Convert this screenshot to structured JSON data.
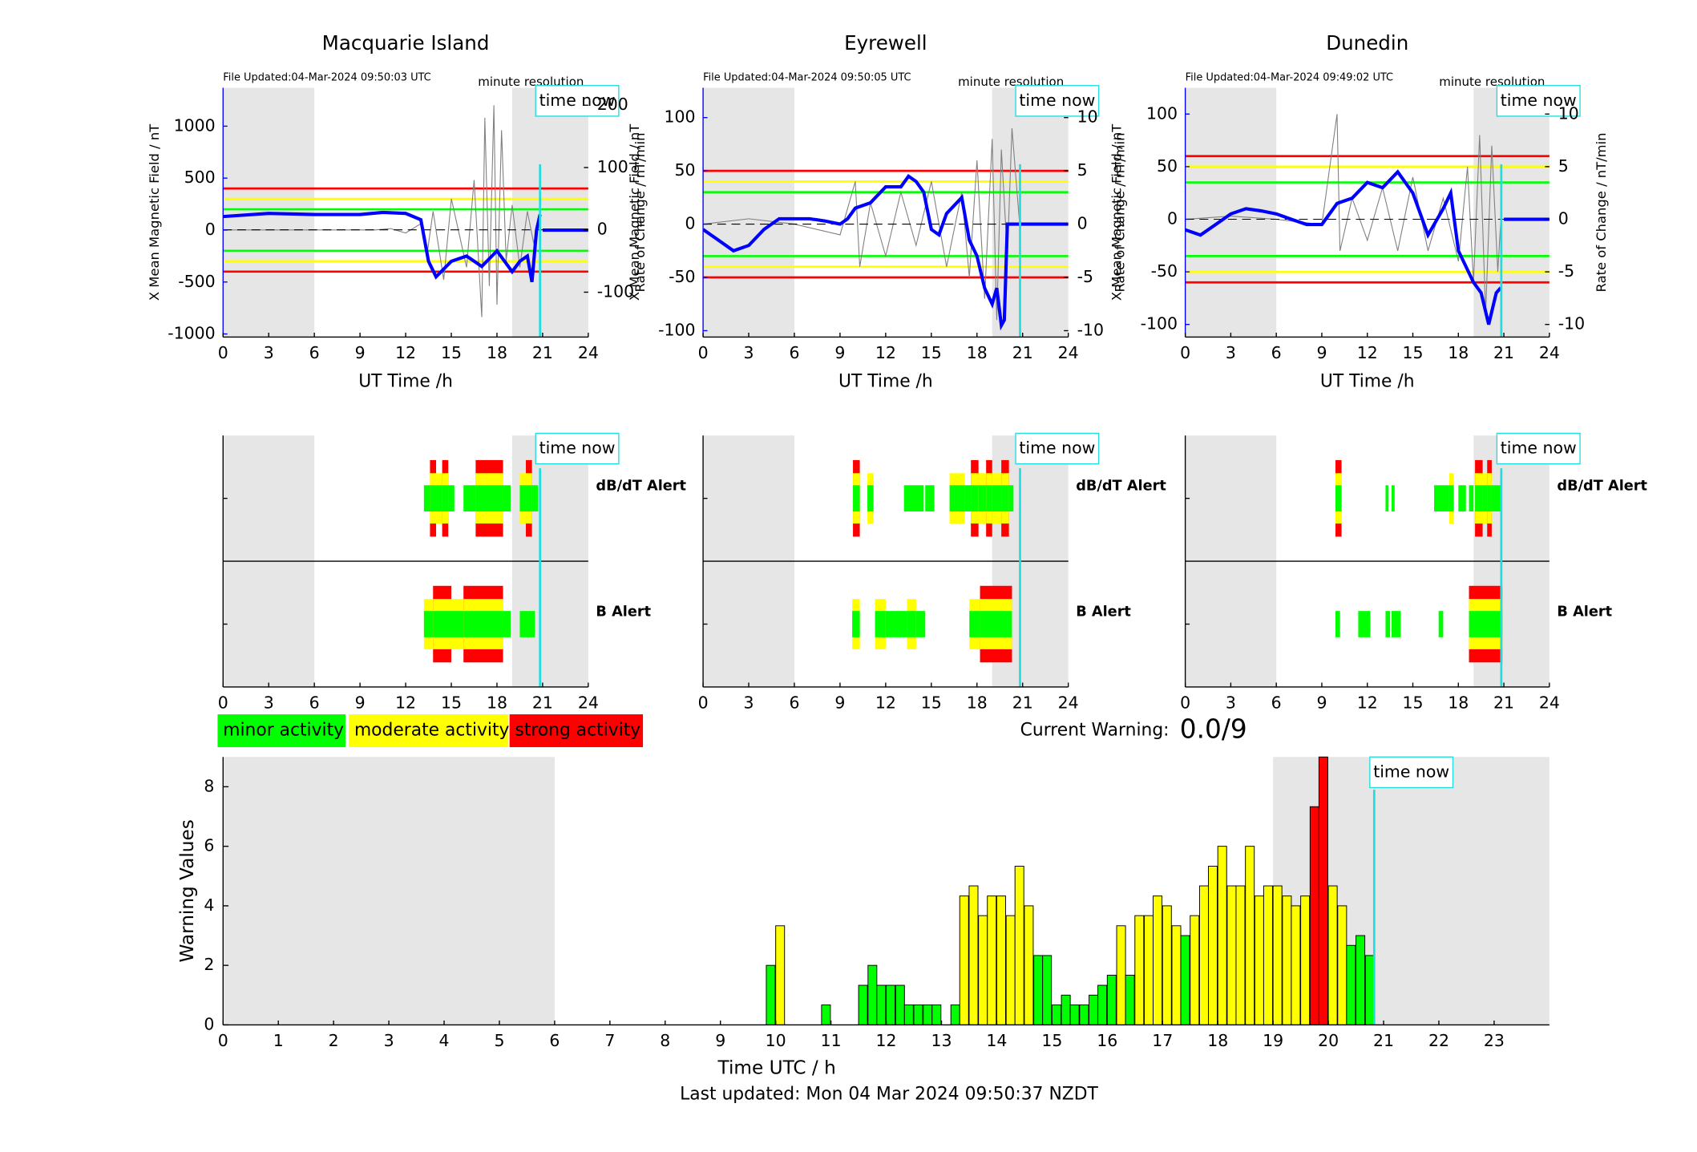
{
  "chart_data": [
    {
      "type": "line",
      "title": "Macquarie Island",
      "subtitle": "File Updated:04-Mar-2024 09:50:03 UTC",
      "note": "minute resolution",
      "time_now": 20.83,
      "time_now_label": "time now",
      "xlabel": "UT Time /h",
      "ylabel": "X Mean Magnetic Field / nT",
      "y2label": "Rate of Change / nT/min",
      "xlim": [
        0,
        24
      ],
      "xticks": [
        0,
        3,
        6,
        9,
        12,
        15,
        18,
        21,
        24
      ],
      "ylim": [
        -1030,
        1370
      ],
      "yticks": [
        -1000,
        -500,
        0,
        500,
        1000
      ],
      "y2lim": [
        -172,
        228
      ],
      "y2ticks": [
        -100,
        0,
        100,
        200
      ],
      "shade": [
        [
          0,
          6
        ],
        [
          19,
          24
        ]
      ],
      "thresholds": [
        {
          "value": 400,
          "color": "#ff0000"
        },
        {
          "value": -400,
          "color": "#ff0000"
        },
        {
          "value": 300,
          "color": "#ffff00"
        },
        {
          "value": -300,
          "color": "#ffff00"
        },
        {
          "value": 200,
          "color": "#00ff00"
        },
        {
          "value": -200,
          "color": "#00ff00"
        }
      ],
      "rate": {
        "color": "#808080",
        "axis": "y2",
        "x": [
          0,
          6,
          10,
          11,
          12,
          13,
          13.4,
          13.8,
          14.5,
          15,
          16,
          16.5,
          17,
          17.2,
          17.5,
          17.8,
          18,
          18.3,
          18.6,
          19,
          19.5,
          20,
          20.4,
          20.8
        ],
        "values": [
          0,
          0,
          0,
          2,
          -5,
          10,
          -40,
          30,
          -80,
          50,
          -60,
          80,
          -140,
          180,
          -90,
          200,
          -120,
          160,
          -50,
          40,
          -60,
          30,
          -20,
          10
        ]
      },
      "field": {
        "color": "#0000ff",
        "x": [
          0,
          3,
          6,
          9,
          10.5,
          12,
          13,
          13.5,
          14,
          15,
          16,
          17,
          18,
          19,
          19.5,
          20,
          20.3,
          20.6,
          20.83,
          20.9,
          21,
          24
        ],
        "values": [
          130,
          160,
          150,
          150,
          170,
          160,
          100,
          -300,
          -450,
          -300,
          -250,
          -350,
          -200,
          -400,
          -300,
          -250,
          -500,
          0,
          150,
          null,
          0,
          0
        ]
      }
    },
    {
      "type": "line",
      "title": "Eyrewell",
      "subtitle": "File Updated:04-Mar-2024 09:50:05 UTC",
      "note": "minute resolution",
      "time_now": 20.83,
      "time_now_label": "time now",
      "xlabel": "UT Time /h",
      "ylabel": "X Mean Magnetic Field / nT",
      "y2label": "Rate of Change / nT/min",
      "xlim": [
        0,
        24
      ],
      "xticks": [
        0,
        3,
        6,
        9,
        12,
        15,
        18,
        21,
        24
      ],
      "ylim": [
        -106,
        128
      ],
      "yticks": [
        -100,
        -50,
        0,
        50,
        100
      ],
      "y2lim": [
        -10.6,
        12.8
      ],
      "y2ticks": [
        -10,
        -5,
        0,
        5,
        10
      ],
      "shade": [
        [
          0,
          6
        ],
        [
          19,
          24
        ]
      ],
      "thresholds": [
        {
          "value": 50,
          "color": "#ff0000"
        },
        {
          "value": -50,
          "color": "#ff0000"
        },
        {
          "value": 40,
          "color": "#ffff00"
        },
        {
          "value": -40,
          "color": "#ffff00"
        },
        {
          "value": 30,
          "color": "#00ff00"
        },
        {
          "value": -30,
          "color": "#00ff00"
        }
      ],
      "rate": {
        "color": "#808080",
        "axis": "y2",
        "x": [
          0,
          3,
          6,
          9,
          10,
          10.3,
          11,
          12,
          13,
          14,
          15,
          16,
          17,
          17.5,
          18,
          18.5,
          19,
          19.3,
          19.6,
          20,
          20.3,
          20.8
        ],
        "values": [
          0,
          0.5,
          0,
          -1,
          4,
          -4,
          2,
          -3,
          3,
          -2,
          4,
          -4,
          3,
          -5,
          6,
          -7,
          8,
          -9,
          7,
          -3,
          9,
          0
        ]
      },
      "field": {
        "color": "#0000ff",
        "x": [
          0,
          1,
          2,
          3,
          4,
          5,
          6,
          7,
          8,
          9,
          9.5,
          10,
          11,
          12,
          13,
          13.5,
          14,
          14.5,
          15,
          15.5,
          16,
          17,
          17.5,
          18,
          18.5,
          19,
          19.3,
          19.6,
          19.8,
          20,
          24
        ],
        "values": [
          -5,
          -15,
          -25,
          -20,
          -5,
          5,
          5,
          5,
          3,
          0,
          5,
          15,
          20,
          35,
          35,
          45,
          40,
          30,
          -5,
          -10,
          10,
          25,
          -15,
          -30,
          -60,
          -75,
          -60,
          -95,
          -90,
          0,
          0
        ]
      }
    },
    {
      "type": "line",
      "title": "Dunedin",
      "subtitle": "File Updated:04-Mar-2024 09:49:02 UTC",
      "note": "minute resolution",
      "time_now": 20.83,
      "time_now_label": "time now",
      "xlabel": "UT Time /h",
      "ylabel": "X Mean Magnetic Field / nT",
      "y2label": "Rate of Change / nT/min",
      "xlim": [
        0,
        24
      ],
      "xticks": [
        0,
        3,
        6,
        9,
        12,
        15,
        18,
        21,
        24
      ],
      "ylim": [
        -112,
        125
      ],
      "yticks": [
        -100,
        -50,
        0,
        50,
        100
      ],
      "y2lim": [
        -11.2,
        12.5
      ],
      "y2ticks": [
        -10,
        -5,
        0,
        5,
        10
      ],
      "shade": [
        [
          0,
          6
        ],
        [
          19,
          24
        ]
      ],
      "thresholds": [
        {
          "value": 60,
          "color": "#ff0000"
        },
        {
          "value": -60,
          "color": "#ff0000"
        },
        {
          "value": 50,
          "color": "#ffff00"
        },
        {
          "value": -50,
          "color": "#ffff00"
        },
        {
          "value": 35,
          "color": "#00ff00"
        },
        {
          "value": -35,
          "color": "#00ff00"
        }
      ],
      "rate": {
        "color": "#808080",
        "axis": "y2",
        "x": [
          0,
          3,
          6,
          9,
          10,
          10.2,
          11,
          12,
          13,
          14,
          15,
          16,
          17,
          18,
          18.6,
          19,
          19.4,
          19.8,
          20.2,
          20.6,
          20.8
        ],
        "values": [
          0,
          0.3,
          0,
          -0.5,
          10,
          -3,
          2,
          -2,
          3,
          -3,
          4,
          -3,
          2,
          -4,
          5,
          -6,
          8,
          -9,
          7,
          -5,
          0
        ]
      },
      "field": {
        "color": "#0000ff",
        "x": [
          0,
          1,
          2,
          3,
          4,
          5,
          6,
          7,
          8,
          9,
          10,
          11,
          12,
          13,
          14,
          15,
          16,
          17,
          17.5,
          18,
          19,
          19.5,
          20,
          20.5,
          20.8,
          20.9,
          21,
          24
        ],
        "values": [
          -10,
          -15,
          -5,
          5,
          10,
          8,
          5,
          0,
          -5,
          -5,
          15,
          20,
          35,
          30,
          45,
          25,
          -15,
          10,
          25,
          -30,
          -60,
          -70,
          -100,
          -70,
          -65,
          null,
          0,
          0
        ]
      }
    },
    {
      "type": "timeline",
      "xlim": [
        0,
        24
      ],
      "xticks": [
        0,
        3,
        6,
        9,
        12,
        15,
        18,
        21,
        24
      ],
      "shade": [
        [
          0,
          6
        ],
        [
          19,
          24
        ]
      ],
      "time_now": 20.83,
      "time_now_label": "time now",
      "level_colors": [
        "#00ff00",
        "#ffff00",
        "#ff0000"
      ],
      "rows": [
        {
          "label": "dB/dT Alert",
          "color": "#000000",
          "alerts": [
            [
              13.2,
              13.6,
              1
            ],
            [
              13.6,
              14.0,
              3
            ],
            [
              14.0,
              14.4,
              2
            ],
            [
              14.4,
              14.8,
              3
            ],
            [
              14.8,
              15.2,
              1
            ],
            [
              15.8,
              16.6,
              1
            ],
            [
              16.6,
              18.4,
              3
            ],
            [
              18.4,
              18.9,
              1
            ],
            [
              19.5,
              19.9,
              2
            ],
            [
              19.9,
              20.3,
              3
            ],
            [
              20.3,
              20.7,
              1
            ]
          ]
        },
        {
          "label": "B Alert",
          "color": "#0000ff",
          "alerts": [
            [
              13.2,
              13.8,
              2
            ],
            [
              13.8,
              15.0,
              3
            ],
            [
              15.0,
              15.8,
              2
            ],
            [
              15.8,
              18.4,
              3
            ],
            [
              18.4,
              18.9,
              1
            ],
            [
              19.5,
              20.5,
              1
            ]
          ]
        }
      ]
    },
    {
      "type": "timeline",
      "xlim": [
        0,
        24
      ],
      "xticks": [
        0,
        3,
        6,
        9,
        12,
        15,
        18,
        21,
        24
      ],
      "shade": [
        [
          0,
          6
        ],
        [
          19,
          24
        ]
      ],
      "time_now": 20.83,
      "time_now_label": "time now",
      "level_colors": [
        "#00ff00",
        "#ffff00",
        "#ff0000"
      ],
      "rows": [
        {
          "label": "dB/dT Alert",
          "color": "#000000",
          "alerts": [
            [
              9.85,
              10.3,
              3
            ],
            [
              10.8,
              11.2,
              2
            ],
            [
              13.2,
              14.5,
              1
            ],
            [
              14.6,
              15.2,
              1
            ],
            [
              16.2,
              17.2,
              2
            ],
            [
              17.2,
              17.6,
              1
            ],
            [
              17.6,
              18.1,
              3
            ],
            [
              18.1,
              18.6,
              2
            ],
            [
              18.6,
              19.0,
              3
            ],
            [
              19.0,
              19.6,
              2
            ],
            [
              19.6,
              20.1,
              3
            ],
            [
              20.1,
              20.4,
              1
            ]
          ]
        },
        {
          "label": "B Alert",
          "color": "#0000ff",
          "alerts": [
            [
              9.8,
              10.3,
              2
            ],
            [
              11.3,
              12.0,
              2
            ],
            [
              12.0,
              13.4,
              1
            ],
            [
              13.4,
              14.0,
              2
            ],
            [
              14.0,
              14.6,
              1
            ],
            [
              17.5,
              18.2,
              2
            ],
            [
              18.2,
              20.3,
              3
            ]
          ]
        }
      ]
    },
    {
      "type": "timeline",
      "xlim": [
        0,
        24
      ],
      "xticks": [
        0,
        3,
        6,
        9,
        12,
        15,
        18,
        21,
        24
      ],
      "shade": [
        [
          0,
          6
        ],
        [
          19,
          24
        ]
      ],
      "time_now": 20.83,
      "time_now_label": "time now",
      "level_colors": [
        "#00ff00",
        "#ffff00",
        "#ff0000"
      ],
      "rows": [
        {
          "label": "dB/dT Alert",
          "color": "#000000",
          "alerts": [
            [
              9.9,
              10.3,
              3
            ],
            [
              13.2,
              13.4,
              1
            ],
            [
              13.6,
              13.8,
              1
            ],
            [
              16.4,
              17.4,
              1
            ],
            [
              17.4,
              17.7,
              2
            ],
            [
              18.0,
              18.5,
              1
            ],
            [
              18.7,
              19.0,
              1
            ],
            [
              19.1,
              19.6,
              3
            ],
            [
              19.6,
              19.9,
              2
            ],
            [
              19.9,
              20.2,
              3
            ],
            [
              20.2,
              20.8,
              1
            ]
          ]
        },
        {
          "label": "B Alert",
          "color": "#0000ff",
          "alerts": [
            [
              9.9,
              10.2,
              1
            ],
            [
              11.4,
              11.8,
              1
            ],
            [
              11.8,
              12.2,
              1
            ],
            [
              13.2,
              13.5,
              1
            ],
            [
              13.6,
              14.2,
              1
            ],
            [
              16.7,
              17.0,
              1
            ],
            [
              18.7,
              20.9,
              3
            ]
          ]
        }
      ]
    },
    {
      "type": "bar",
      "xlabel": "Time UTC / h",
      "ylabel": "Warning Values",
      "time_now": 20.83,
      "time_now_label": "time now",
      "xlim": [
        0,
        24
      ],
      "xticks": [
        0,
        1,
        2,
        3,
        4,
        5,
        6,
        7,
        8,
        9,
        10,
        11,
        12,
        13,
        14,
        15,
        16,
        17,
        18,
        19,
        20,
        21,
        22,
        23
      ],
      "ylim": [
        0,
        9
      ],
      "yticks": [
        0,
        2,
        4,
        6,
        8
      ],
      "shade": [
        [
          0,
          6
        ],
        [
          19,
          24
        ]
      ],
      "x": [
        9.83,
        10.0,
        10.83,
        11.5,
        11.67,
        11.83,
        12.0,
        12.17,
        12.33,
        12.5,
        12.67,
        12.83,
        13.17,
        13.33,
        13.5,
        13.67,
        13.83,
        14.0,
        14.17,
        14.33,
        14.5,
        14.67,
        14.83,
        15.0,
        15.17,
        15.33,
        15.5,
        15.67,
        15.83,
        16.0,
        16.17,
        16.33,
        16.5,
        16.67,
        16.83,
        17.0,
        17.17,
        17.33,
        17.5,
        17.67,
        17.83,
        18.0,
        18.17,
        18.33,
        18.5,
        18.67,
        18.83,
        19.0,
        19.17,
        19.33,
        19.5,
        19.67,
        19.83,
        20.0,
        20.17,
        20.33,
        20.5,
        20.67
      ],
      "values": [
        2,
        3.33,
        0.67,
        1.33,
        2,
        1.33,
        1.33,
        1.33,
        0.67,
        0.67,
        0.67,
        0.67,
        0.67,
        4.33,
        4.67,
        3.67,
        4.33,
        4.33,
        3.67,
        5.33,
        4,
        2.33,
        2.33,
        0.67,
        1,
        0.67,
        0.67,
        1,
        1.33,
        1.67,
        3.33,
        1.67,
        3.67,
        3.67,
        4.33,
        4,
        3.33,
        3,
        3.67,
        4.67,
        5.33,
        6,
        4.67,
        4.67,
        6,
        4.33,
        4.67,
        4.67,
        4.33,
        4,
        4.33,
        7.33,
        9,
        4.67,
        4,
        2.67,
        3,
        2.33
      ],
      "colors": [
        "#00ff00",
        "#ffff00",
        "#00ff00",
        "#00ff00",
        "#00ff00",
        "#00ff00",
        "#00ff00",
        "#00ff00",
        "#00ff00",
        "#00ff00",
        "#00ff00",
        "#00ff00",
        "#00ff00",
        "#ffff00",
        "#ffff00",
        "#ffff00",
        "#ffff00",
        "#ffff00",
        "#ffff00",
        "#ffff00",
        "#ffff00",
        "#00ff00",
        "#00ff00",
        "#00ff00",
        "#00ff00",
        "#00ff00",
        "#00ff00",
        "#00ff00",
        "#00ff00",
        "#00ff00",
        "#ffff00",
        "#00ff00",
        "#ffff00",
        "#ffff00",
        "#ffff00",
        "#ffff00",
        "#ffff00",
        "#00ff00",
        "#ffff00",
        "#ffff00",
        "#ffff00",
        "#ffff00",
        "#ffff00",
        "#ffff00",
        "#ffff00",
        "#ffff00",
        "#ffff00",
        "#ffff00",
        "#ffff00",
        "#ffff00",
        "#ffff00",
        "#ff0000",
        "#ff0000",
        "#ffff00",
        "#ffff00",
        "#00ff00",
        "#00ff00",
        "#00ff00"
      ],
      "legend": [
        {
          "name": "minor activity",
          "color": "#00ff00"
        },
        {
          "name": "moderate activity",
          "color": "#ffff00"
        },
        {
          "name": "strong activity",
          "color": "#ff0000"
        }
      ],
      "current_warning_label": "Current Warning:",
      "current_warning": "0.0/9",
      "footer": "Last updated: Mon 04 Mar 2024 09:50:37 NZDT"
    }
  ]
}
